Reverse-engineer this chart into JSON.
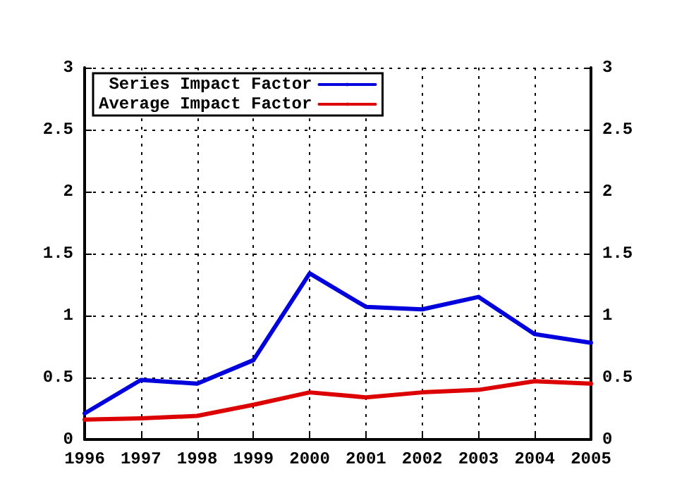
{
  "chart_data": {
    "type": "line",
    "x": [
      1996,
      1997,
      1998,
      1999,
      2000,
      2001,
      2002,
      2003,
      2004,
      2005
    ],
    "series": [
      {
        "name": "Series Impact Factor",
        "color": "#0000dd",
        "values": [
          0.21,
          0.48,
          0.45,
          0.64,
          1.34,
          1.07,
          1.05,
          1.15,
          0.85,
          0.78
        ]
      },
      {
        "name": "Average Impact Factor",
        "color": "#dd0000",
        "values": [
          0.16,
          0.17,
          0.19,
          0.28,
          0.38,
          0.34,
          0.38,
          0.4,
          0.47,
          0.45
        ]
      }
    ],
    "xlim": [
      1996,
      2005
    ],
    "xticks": [
      1996,
      1997,
      1998,
      1999,
      2000,
      2001,
      2002,
      2003,
      2004,
      2005
    ],
    "ylim": [
      0,
      3
    ],
    "yticks": [
      0,
      0.5,
      1,
      1.5,
      2,
      2.5,
      3
    ],
    "y2lim": [
      0,
      3
    ],
    "y2ticks": [
      0,
      0.5,
      1,
      1.5,
      2,
      2.5,
      3
    ],
    "grid": true,
    "legend": "top left",
    "marker": "none",
    "line_style": "solid"
  }
}
